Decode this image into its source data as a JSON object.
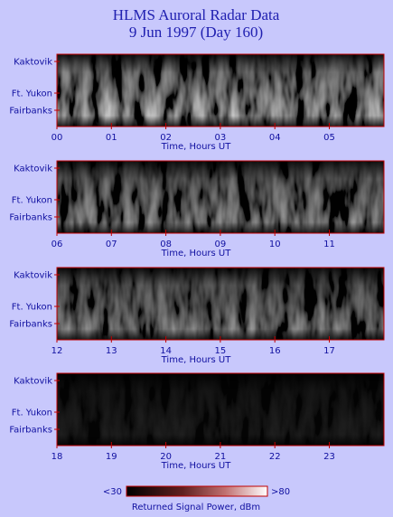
{
  "title": [
    "HLMS Auroral Radar Data",
    "9 Jun 1997 (Day 160)"
  ],
  "panels": [
    {
      "ylabels": [
        "Kaktovik",
        "Ft. Yukon",
        "Fairbanks"
      ],
      "xticks": [
        "00",
        "01",
        "02",
        "03",
        "04",
        "05"
      ],
      "xlabel": "Time, Hours UT"
    },
    {
      "ylabels": [
        "Kaktovik",
        "Ft. Yukon",
        "Fairbanks"
      ],
      "xticks": [
        "06",
        "07",
        "08",
        "09",
        "10",
        "11"
      ],
      "xlabel": "Time, Hours UT"
    },
    {
      "ylabels": [
        "Kaktovik",
        "Ft. Yukon",
        "Fairbanks"
      ],
      "xticks": [
        "12",
        "13",
        "14",
        "15",
        "16",
        "17"
      ],
      "xlabel": "Time, Hours UT"
    },
    {
      "ylabels": [
        "Kaktovik",
        "Ft. Yukon",
        "Fairbanks"
      ],
      "xticks": [
        "18",
        "19",
        "20",
        "21",
        "22",
        "23"
      ],
      "xlabel": "Time, Hours UT"
    }
  ],
  "colorbar": {
    "min_label": "<30",
    "max_label": ">80",
    "label": "Returned Signal Power, dBm"
  }
}
